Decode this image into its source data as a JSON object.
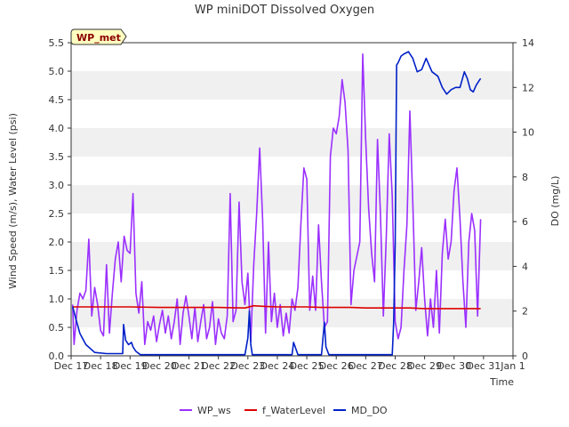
{
  "chart_data": {
    "type": "line",
    "title": "WP miniDOT Dissolved Oxygen",
    "badge": "WP_met",
    "xlabel": "Time",
    "ylabel": "Wind Speed (m/s), Water Level (psi)",
    "y2label": "DO (mg/L)",
    "xlim": [
      0,
      15
    ],
    "ylim": [
      0,
      5.5
    ],
    "y2lim": [
      0,
      14
    ],
    "x_tick_positions": [
      0,
      1,
      2,
      3,
      4,
      5,
      6,
      7,
      8,
      9,
      10,
      11,
      12,
      13,
      14,
      15
    ],
    "x_tick_labels": [
      "Dec 17",
      "Dec 18",
      "Dec 19",
      "Dec 20",
      "Dec 21",
      "Dec 22",
      "Dec 23",
      "Dec 24",
      "Dec 25",
      "Dec 26",
      "Dec 27",
      "Dec 28",
      "Dec 29",
      "Dec 30",
      "Dec 31",
      "Jan 1"
    ],
    "y_ticks": [
      0.0,
      0.5,
      1.0,
      1.5,
      2.0,
      2.5,
      3.0,
      3.5,
      4.0,
      4.5,
      5.0,
      5.5
    ],
    "y_tick_labels": [
      "0.0",
      "0.5",
      "1.0",
      "1.5",
      "2.0",
      "2.5",
      "3.0",
      "3.5",
      "4.0",
      "4.5",
      "5.0",
      "5.5"
    ],
    "y2_ticks": [
      0,
      2,
      4,
      6,
      8,
      10,
      12,
      14
    ],
    "y2_tick_labels": [
      "0",
      "2",
      "4",
      "6",
      "8",
      "10",
      "12",
      "14"
    ],
    "grid": "horizontal bands",
    "legend_position": "bottom",
    "series": [
      {
        "name": "WP_ws",
        "axis": "left",
        "color": "#9b30ff",
        "x": [
          0.05,
          0.1,
          0.2,
          0.3,
          0.4,
          0.5,
          0.6,
          0.7,
          0.8,
          0.9,
          1.0,
          1.1,
          1.2,
          1.3,
          1.4,
          1.5,
          1.6,
          1.7,
          1.8,
          1.9,
          2.0,
          2.1,
          2.2,
          2.3,
          2.4,
          2.5,
          2.6,
          2.7,
          2.8,
          2.9,
          3.0,
          3.1,
          3.2,
          3.3,
          3.4,
          3.5,
          3.6,
          3.7,
          3.8,
          3.9,
          4.0,
          4.1,
          4.2,
          4.3,
          4.4,
          4.5,
          4.6,
          4.7,
          4.8,
          4.9,
          5.0,
          5.1,
          5.2,
          5.3,
          5.4,
          5.5,
          5.6,
          5.7,
          5.8,
          5.9,
          6.0,
          6.1,
          6.2,
          6.3,
          6.4,
          6.5,
          6.6,
          6.7,
          6.8,
          6.9,
          7.0,
          7.1,
          7.2,
          7.3,
          7.4,
          7.5,
          7.6,
          7.7,
          7.8,
          7.9,
          8.0,
          8.1,
          8.2,
          8.3,
          8.4,
          8.5,
          8.6,
          8.7,
          8.8,
          8.9,
          9.0,
          9.1,
          9.2,
          9.3,
          9.4,
          9.5,
          9.6,
          9.7,
          9.8,
          9.9,
          10.0,
          10.1,
          10.2,
          10.3,
          10.4,
          10.5,
          10.6,
          10.7,
          10.8,
          10.9,
          11.0,
          11.1,
          11.2,
          11.3,
          11.4,
          11.5,
          11.6,
          11.7,
          11.8,
          11.9,
          12.0,
          12.1,
          12.2,
          12.3,
          12.4,
          12.5,
          12.6,
          12.7,
          12.8,
          12.9,
          13.0,
          13.1,
          13.2,
          13.3,
          13.4,
          13.5,
          13.6,
          13.7,
          13.8,
          13.9
        ],
        "values": [
          0.9,
          0.2,
          0.8,
          1.1,
          1.0,
          1.15,
          2.05,
          0.7,
          1.2,
          0.9,
          0.45,
          0.35,
          1.6,
          0.4,
          1.1,
          1.7,
          2.0,
          1.3,
          2.1,
          1.85,
          1.8,
          2.85,
          1.1,
          0.75,
          1.3,
          0.2,
          0.6,
          0.45,
          0.7,
          0.25,
          0.55,
          0.8,
          0.4,
          0.7,
          0.3,
          0.6,
          1.0,
          0.2,
          0.75,
          1.05,
          0.7,
          0.3,
          0.85,
          0.25,
          0.6,
          0.9,
          0.3,
          0.5,
          0.95,
          0.2,
          0.65,
          0.4,
          0.3,
          0.7,
          2.85,
          0.6,
          0.8,
          2.7,
          1.3,
          0.9,
          1.45,
          0.25,
          1.6,
          2.5,
          3.65,
          2.4,
          0.4,
          2.0,
          0.6,
          1.1,
          0.5,
          0.9,
          0.35,
          0.75,
          0.4,
          1.0,
          0.8,
          1.2,
          2.3,
          3.3,
          3.1,
          0.8,
          1.4,
          0.8,
          2.3,
          1.3,
          0.5,
          0.6,
          3.5,
          4.0,
          3.9,
          4.2,
          4.85,
          4.45,
          3.6,
          0.9,
          1.5,
          1.75,
          2.0,
          5.3,
          3.8,
          2.6,
          1.8,
          1.3,
          3.8,
          2.5,
          0.7,
          2.1,
          3.9,
          2.8,
          0.6,
          0.3,
          0.5,
          1.5,
          2.3,
          4.3,
          2.7,
          0.8,
          1.3,
          1.9,
          1.0,
          0.35,
          1.0,
          0.5,
          1.5,
          0.4,
          1.8,
          2.4,
          1.7,
          2.0,
          2.9,
          3.3,
          2.4,
          1.3,
          0.5,
          2.0,
          2.5,
          2.2,
          0.7,
          2.4
        ]
      },
      {
        "name": "f_WaterLevel",
        "axis": "left",
        "color": "#dd0000",
        "x": [
          0.05,
          1,
          2,
          3,
          4,
          5,
          5.9,
          6.2,
          6.5,
          7,
          7.5,
          8,
          8.5,
          9,
          9.5,
          10,
          10.5,
          11,
          11.5,
          12,
          12.5,
          13,
          13.5,
          13.9
        ],
        "values": [
          0.86,
          0.86,
          0.86,
          0.85,
          0.85,
          0.85,
          0.84,
          0.88,
          0.87,
          0.86,
          0.86,
          0.86,
          0.85,
          0.85,
          0.85,
          0.84,
          0.84,
          0.84,
          0.84,
          0.83,
          0.83,
          0.83,
          0.83,
          0.83
        ]
      },
      {
        "name": "MD_DO",
        "axis": "right",
        "color": "#0020c8",
        "x": [
          0.05,
          0.15,
          0.3,
          0.5,
          0.8,
          1.2,
          1.6,
          1.75,
          1.78,
          1.85,
          1.95,
          2.05,
          2.1,
          2.2,
          2.35,
          2.5,
          2.7,
          3.0,
          3.5,
          4.0,
          4.5,
          5.0,
          5.5,
          5.9,
          6.0,
          6.05,
          6.1,
          6.15,
          6.3,
          6.6,
          7.0,
          7.5,
          7.55,
          7.7,
          8.0,
          8.5,
          8.6,
          8.65,
          8.75,
          9.0,
          9.5,
          10.0,
          10.5,
          10.9,
          10.95,
          11.0,
          11.05,
          11.1,
          11.2,
          11.3,
          11.45,
          11.6,
          11.75,
          11.9,
          12.05,
          12.25,
          12.45,
          12.6,
          12.75,
          12.9,
          13.05,
          13.2,
          13.35,
          13.45,
          13.55,
          13.65,
          13.75,
          13.85,
          13.9
        ],
        "values": [
          2.2,
          1.7,
          1.0,
          0.5,
          0.15,
          0.1,
          0.1,
          0.1,
          1.4,
          0.7,
          0.5,
          0.6,
          0.4,
          0.2,
          0.05,
          0.05,
          0.05,
          0.05,
          0.05,
          0.05,
          0.05,
          0.05,
          0.05,
          0.05,
          0.8,
          2.0,
          0.5,
          0.05,
          0.05,
          0.05,
          0.05,
          0.05,
          0.6,
          0.05,
          0.05,
          0.05,
          1.5,
          0.4,
          0.05,
          0.05,
          0.05,
          0.05,
          0.05,
          0.05,
          1.5,
          5.0,
          13.0,
          13.1,
          13.4,
          13.5,
          13.6,
          13.3,
          12.7,
          12.8,
          13.3,
          12.7,
          12.5,
          12.0,
          11.7,
          11.9,
          12.0,
          12.0,
          12.7,
          12.4,
          11.9,
          11.8,
          12.1,
          12.3,
          12.4
        ]
      }
    ]
  }
}
